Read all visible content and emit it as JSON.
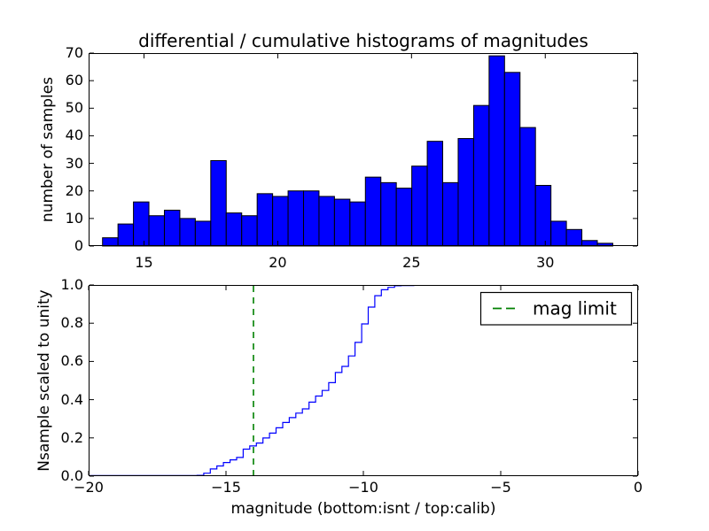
{
  "title": "differential / cumulative histograms of magnitudes",
  "colors": {
    "bar_fill": "#0000ff",
    "bar_edge": "#000000",
    "step_line": "#0000ff",
    "limit_line": "#008000",
    "axis": "#000000",
    "background": "#ffffff"
  },
  "chart_data": [
    {
      "id": "top-differential-histogram",
      "type": "bar",
      "title": "differential / cumulative histograms of magnitudes",
      "xlabel": "",
      "ylabel": "number of samples",
      "xlim": [
        12.93,
        33.47
      ],
      "ylim": [
        0,
        70
      ],
      "xticks": [
        15,
        20,
        25,
        30
      ],
      "xticklabels": [
        "15",
        "20",
        "25",
        "30"
      ],
      "yticks": [
        0,
        10,
        20,
        30,
        40,
        50,
        60,
        70
      ],
      "yticklabels": [
        "0",
        "10",
        "20",
        "30",
        "40",
        "50",
        "60",
        "70"
      ],
      "grid": false,
      "bin_start": 13.45,
      "bin_width": 0.578,
      "values": [
        3,
        8,
        16,
        11,
        13,
        10,
        9,
        31,
        12,
        11,
        19,
        18,
        20,
        20,
        18,
        17,
        16,
        25,
        23,
        21,
        29,
        38,
        23,
        39,
        51,
        69,
        63,
        43,
        22,
        9,
        6,
        2,
        1
      ]
    },
    {
      "id": "bottom-cumulative-histogram",
      "type": "line",
      "subtype": "cumulative-step",
      "xlabel": "magnitude (bottom:isnt / top:calib)",
      "ylabel": "Nsample scaled to unity",
      "xlim": [
        -20,
        0
      ],
      "ylim": [
        0.0,
        1.0
      ],
      "xticks": [
        -20,
        -15,
        -10,
        -5,
        0
      ],
      "xticklabels": [
        "−20",
        "−15",
        "−10",
        "−5",
        "0"
      ],
      "yticks": [
        0.0,
        0.2,
        0.4,
        0.6,
        0.8,
        1.0
      ],
      "yticklabels": [
        "0.0",
        "0.2",
        "0.4",
        "0.6",
        "0.8",
        "1.0"
      ],
      "grid": false,
      "bin_start": -16.05,
      "bin_width": 0.2395,
      "counts": [
        3,
        8,
        16,
        11,
        13,
        10,
        9,
        31,
        12,
        11,
        19,
        18,
        20,
        20,
        18,
        17,
        16,
        25,
        23,
        21,
        29,
        38,
        23,
        39,
        51,
        69,
        63,
        43,
        22,
        9,
        6,
        2,
        1
      ],
      "vline": {
        "x": -14,
        "style": "dashed",
        "label": "mag limit"
      },
      "legend": {
        "label": "mag limit",
        "position": "upper right"
      }
    }
  ]
}
